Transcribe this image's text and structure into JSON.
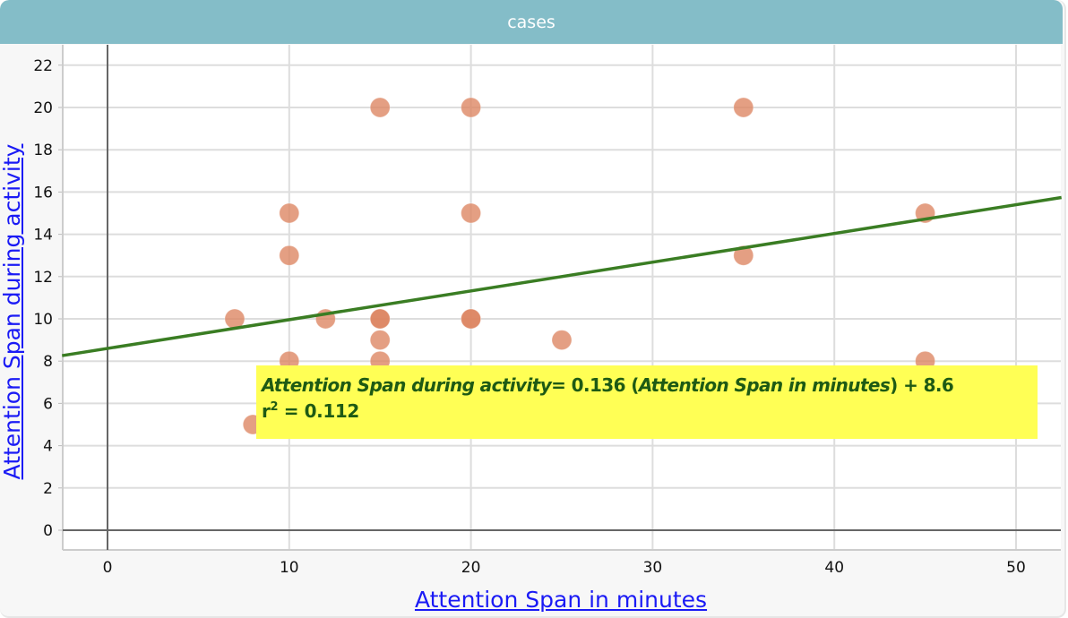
{
  "window": {
    "title": "cases"
  },
  "chart_data": {
    "type": "scatter",
    "title": "cases",
    "xlabel": "Attention Span in minutes",
    "ylabel": "Attention Span during activity",
    "xlim": [
      -2.5,
      52.5
    ],
    "ylim": [
      -0.95,
      23
    ],
    "xticks": [
      0,
      10,
      20,
      30,
      40,
      50
    ],
    "yticks": [
      0,
      2,
      4,
      6,
      8,
      10,
      12,
      14,
      16,
      18,
      20,
      22
    ],
    "grid": true,
    "points": [
      {
        "x": 7,
        "y": 10
      },
      {
        "x": 8,
        "y": 5
      },
      {
        "x": 10,
        "y": 15
      },
      {
        "x": 10,
        "y": 13
      },
      {
        "x": 10,
        "y": 8
      },
      {
        "x": 12,
        "y": 10
      },
      {
        "x": 15,
        "y": 20
      },
      {
        "x": 15,
        "y": 10
      },
      {
        "x": 15,
        "y": 10
      },
      {
        "x": 15,
        "y": 9
      },
      {
        "x": 15,
        "y": 8
      },
      {
        "x": 20,
        "y": 20
      },
      {
        "x": 20,
        "y": 15
      },
      {
        "x": 20,
        "y": 10
      },
      {
        "x": 20,
        "y": 10
      },
      {
        "x": 25,
        "y": 9
      },
      {
        "x": 35,
        "y": 20
      },
      {
        "x": 35,
        "y": 13
      },
      {
        "x": 45,
        "y": 15
      },
      {
        "x": 45,
        "y": 8
      }
    ],
    "regression": {
      "slope": 0.136,
      "intercept": 8.6,
      "r_squared": 0.112
    },
    "colors": {
      "point": "#dc8460",
      "line": "#3a7d23",
      "grid": "#dddddd",
      "axis": "#666666",
      "label": "#1a1af5",
      "equation_bg": "#ffff55",
      "equation_text": "#1e5a14",
      "header": "#84bdc8"
    }
  },
  "equation": {
    "y_name": "Attention Span during activity",
    "equals_coef": "= 0.136 (",
    "x_name": "Attention Span in minutes",
    "tail": ") + 8.6",
    "r_label": "r",
    "r_sup": "2",
    "r_value": " = 0.112"
  }
}
